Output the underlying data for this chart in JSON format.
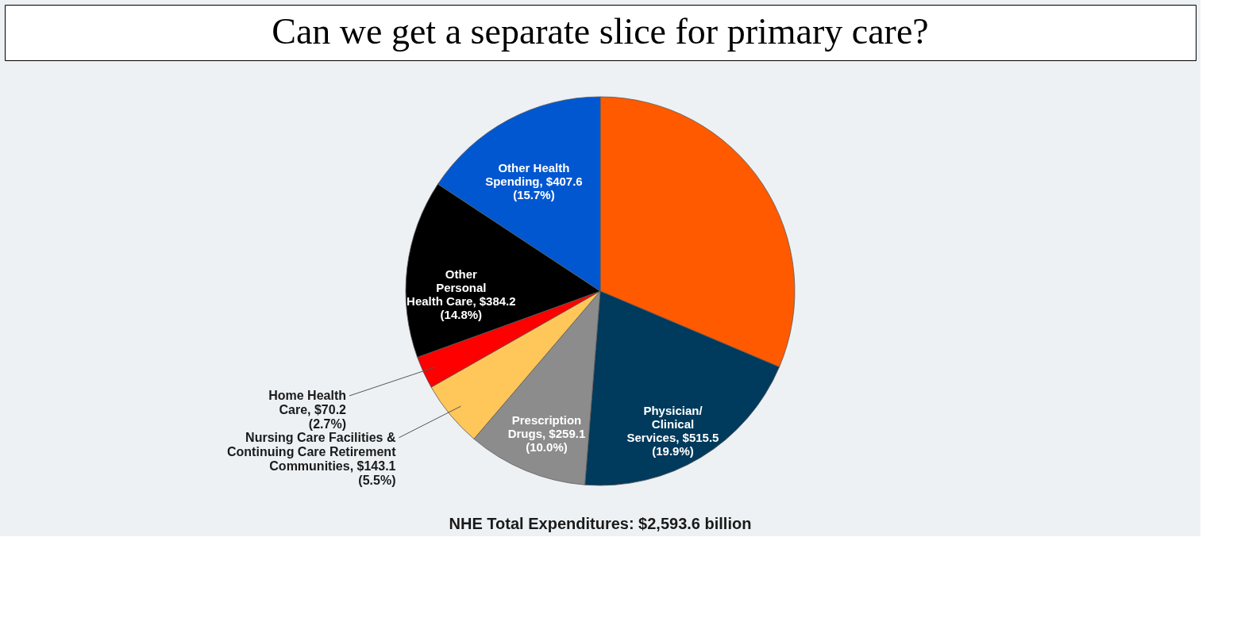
{
  "chart_data": {
    "type": "pie",
    "title": "NHE Total Expenditures: $2,593.6 billion",
    "categories": [
      null,
      "Physician/\nClinical\nServices",
      "Prescription\nDrugs",
      "Nursing Care Facilities &\nContinuing Care Retirement\nCommunities",
      "Home Health\nCare",
      "Other\nPersonal\nHealth Care",
      "Other Health\nSpending"
    ],
    "values": [
      814.0,
      515.5,
      259.1,
      143.1,
      70.2,
      384.2,
      407.6
    ],
    "value_labels": [
      null,
      "$515.5\n(19.9%)",
      "$259.1\n(10.0%)",
      "$143.1\n(5.5%)",
      "$70.2\n(2.7%)",
      "$384.2\n(14.8%)",
      "$407.6\n(15.7%)"
    ],
    "colors": [
      "#ff5a00",
      "#003a5c",
      "#8c8c8c",
      "#ffc65a",
      "#ff0000",
      "#000000",
      "#0057d0"
    ],
    "annotations": [
      "Can we get a separate slice for primary care?"
    ]
  }
}
